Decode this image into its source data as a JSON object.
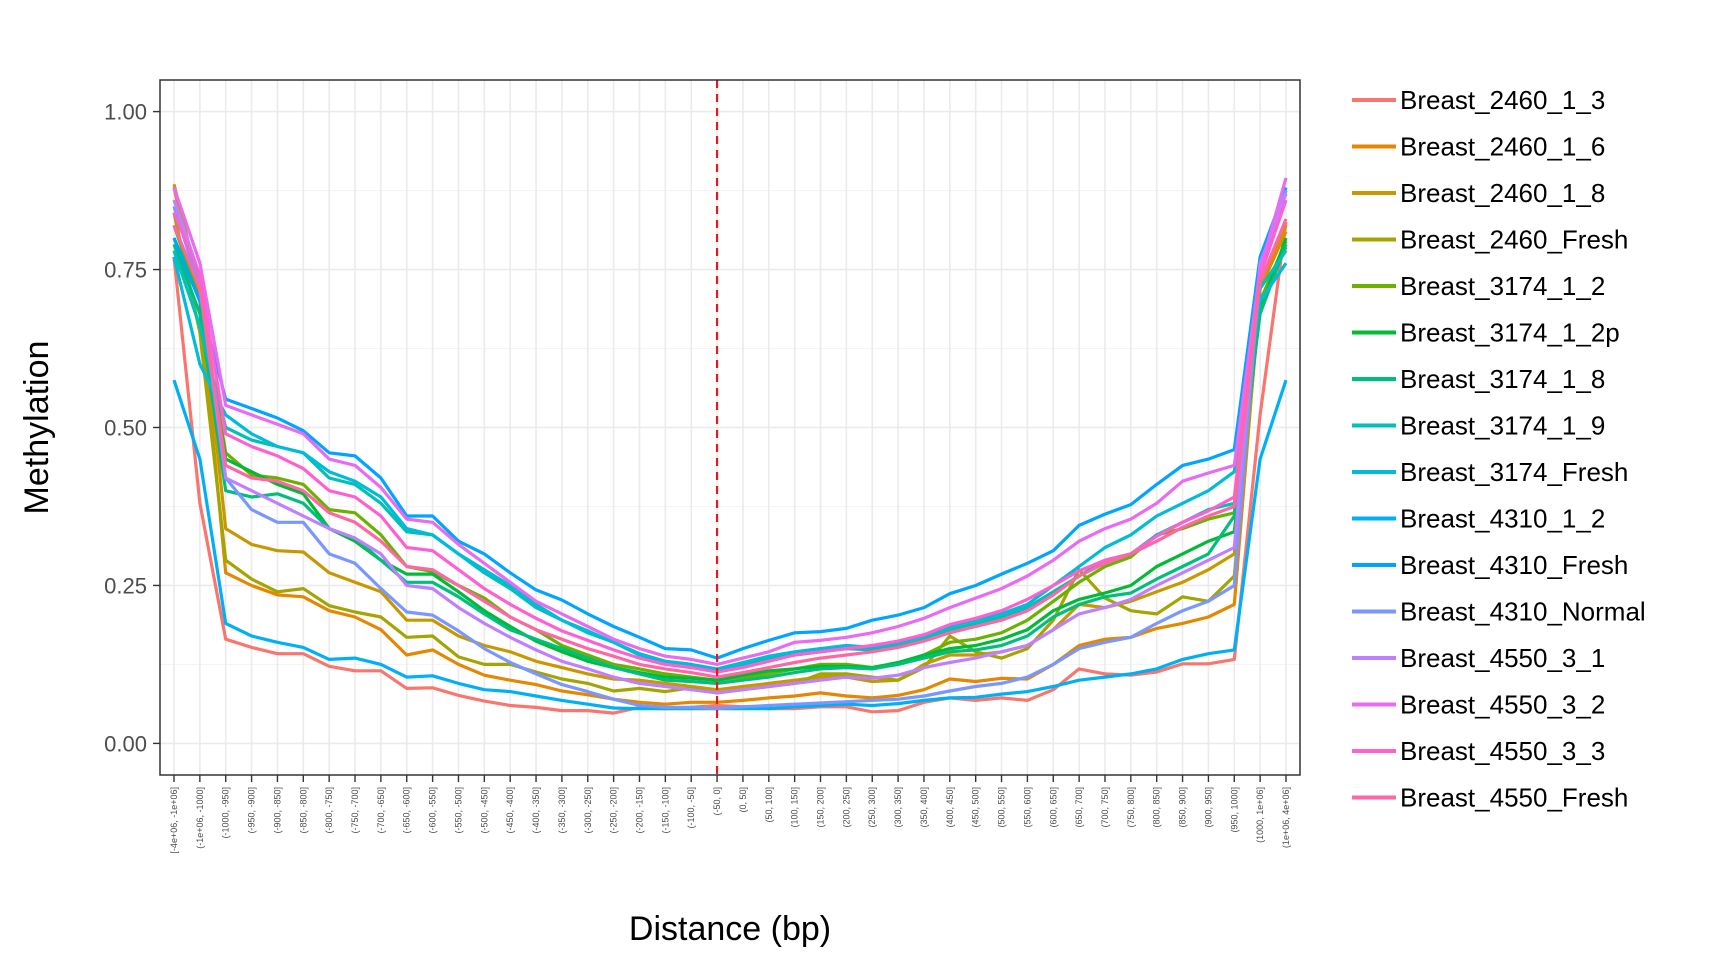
{
  "chart_data": {
    "type": "line",
    "title": "",
    "xlabel": "Distance (bp)",
    "ylabel": "Methylation",
    "ylim": [
      -0.05,
      1.05
    ],
    "yticks": [
      "0.00",
      "0.25",
      "0.50",
      "0.75",
      "1.00"
    ],
    "ytick_values": [
      0,
      0.25,
      0.5,
      0.75,
      1.0
    ],
    "grid": true,
    "legend_position": "right",
    "reference_line": {
      "category": "(-50, 0]",
      "color": "#e41a1c",
      "style": "dashed"
    },
    "categories": [
      "[-4e+06, -1e+06]",
      "(-1e+06, -1000]",
      "(-1000, -950]",
      "(-950, -900]",
      "(-900, -850]",
      "(-850, -800]",
      "(-800, -750]",
      "(-750, -700]",
      "(-700, -650]",
      "(-650, -600]",
      "(-600, -550]",
      "(-550, -500]",
      "(-500, -450]",
      "(-450, -400]",
      "(-400, -350]",
      "(-350, -300]",
      "(-300, -250]",
      "(-250, -200]",
      "(-200, -150]",
      "(-150, -100]",
      "(-100, -50]",
      "(-50, 0]",
      "(0, 50]",
      "(50, 100]",
      "(100, 150]",
      "(150, 200]",
      "(200, 250]",
      "(250, 300]",
      "(300, 350]",
      "(350, 400]",
      "(400, 450]",
      "(450, 500]",
      "(500, 550]",
      "(550, 600]",
      "(600, 650]",
      "(650, 700]",
      "(700, 750]",
      "(750, 800]",
      "(800, 850]",
      "(850, 900]",
      "(900, 950]",
      "(950, 1000]",
      "(1000, 1e+06]",
      "(1e+06, 4e+06]"
    ],
    "series": [
      {
        "name": "Breast_2460_1_3",
        "color": "#F8766D",
        "values": [
          0.77,
          0.38,
          0.165,
          0.152,
          0.142,
          0.142,
          0.122,
          0.115,
          0.115,
          0.087,
          0.088,
          0.076,
          0.067,
          0.06,
          0.057,
          0.052,
          0.052,
          0.048,
          0.057,
          0.055,
          0.057,
          0.06,
          0.058,
          0.055,
          0.055,
          0.058,
          0.058,
          0.05,
          0.052,
          0.065,
          0.072,
          0.068,
          0.072,
          0.068,
          0.085,
          0.118,
          0.11,
          0.108,
          0.113,
          0.126,
          0.126,
          0.133,
          0.52,
          0.825
        ]
      },
      {
        "name": "Breast_2460_1_6",
        "color": "#E58700",
        "values": [
          0.88,
          0.7,
          0.27,
          0.25,
          0.235,
          0.232,
          0.21,
          0.2,
          0.18,
          0.14,
          0.148,
          0.125,
          0.108,
          0.1,
          0.093,
          0.083,
          0.077,
          0.07,
          0.065,
          0.062,
          0.065,
          0.065,
          0.068,
          0.072,
          0.075,
          0.08,
          0.075,
          0.072,
          0.076,
          0.085,
          0.102,
          0.098,
          0.103,
          0.102,
          0.125,
          0.155,
          0.165,
          0.168,
          0.182,
          0.19,
          0.2,
          0.22,
          0.72,
          0.81
        ]
      },
      {
        "name": "Breast_2460_1_8",
        "color": "#C99800",
        "values": [
          0.885,
          0.72,
          0.34,
          0.315,
          0.305,
          0.303,
          0.27,
          0.255,
          0.24,
          0.195,
          0.195,
          0.17,
          0.155,
          0.145,
          0.13,
          0.12,
          0.11,
          0.102,
          0.1,
          0.095,
          0.09,
          0.085,
          0.09,
          0.095,
          0.1,
          0.105,
          0.105,
          0.098,
          0.1,
          0.125,
          0.14,
          0.14,
          0.145,
          0.155,
          0.18,
          0.22,
          0.215,
          0.225,
          0.24,
          0.255,
          0.275,
          0.3,
          0.73,
          0.82
        ]
      },
      {
        "name": "Breast_2460_Fresh",
        "color": "#A3A500",
        "values": [
          0.84,
          0.65,
          0.29,
          0.26,
          0.24,
          0.245,
          0.218,
          0.208,
          0.2,
          0.168,
          0.17,
          0.137,
          0.125,
          0.125,
          0.113,
          0.102,
          0.095,
          0.083,
          0.087,
          0.082,
          0.088,
          0.08,
          0.085,
          0.09,
          0.095,
          0.11,
          0.11,
          0.105,
          0.1,
          0.12,
          0.17,
          0.145,
          0.135,
          0.15,
          0.195,
          0.275,
          0.23,
          0.21,
          0.205,
          0.232,
          0.225,
          0.265,
          0.7,
          0.785
        ]
      },
      {
        "name": "Breast_3174_1_2",
        "color": "#6BB100",
        "values": [
          0.82,
          0.7,
          0.46,
          0.425,
          0.42,
          0.41,
          0.37,
          0.365,
          0.33,
          0.28,
          0.272,
          0.25,
          0.23,
          0.2,
          0.18,
          0.155,
          0.14,
          0.125,
          0.118,
          0.11,
          0.105,
          0.1,
          0.105,
          0.11,
          0.118,
          0.125,
          0.125,
          0.12,
          0.125,
          0.14,
          0.16,
          0.165,
          0.175,
          0.195,
          0.225,
          0.255,
          0.28,
          0.295,
          0.33,
          0.34,
          0.355,
          0.365,
          0.7,
          0.795
        ]
      },
      {
        "name": "Breast_3174_1_2p",
        "color": "#00BA38",
        "values": [
          0.8,
          0.7,
          0.45,
          0.43,
          0.41,
          0.395,
          0.34,
          0.32,
          0.29,
          0.268,
          0.268,
          0.24,
          0.21,
          0.185,
          0.162,
          0.145,
          0.13,
          0.12,
          0.112,
          0.105,
          0.103,
          0.1,
          0.108,
          0.115,
          0.118,
          0.122,
          0.122,
          0.12,
          0.128,
          0.14,
          0.15,
          0.155,
          0.165,
          0.18,
          0.21,
          0.228,
          0.238,
          0.25,
          0.28,
          0.3,
          0.32,
          0.335,
          0.685,
          0.8
        ]
      },
      {
        "name": "Breast_3174_1_8",
        "color": "#00BF7D",
        "values": [
          0.79,
          0.68,
          0.4,
          0.39,
          0.395,
          0.38,
          0.34,
          0.325,
          0.29,
          0.255,
          0.255,
          0.232,
          0.205,
          0.18,
          0.165,
          0.15,
          0.135,
          0.12,
          0.11,
          0.1,
          0.098,
          0.095,
          0.1,
          0.105,
          0.112,
          0.118,
          0.12,
          0.118,
          0.125,
          0.135,
          0.145,
          0.148,
          0.155,
          0.17,
          0.2,
          0.22,
          0.232,
          0.238,
          0.26,
          0.28,
          0.3,
          0.36,
          0.68,
          0.79
        ]
      },
      {
        "name": "Breast_3174_1_9",
        "color": "#00C0B8",
        "values": [
          0.78,
          0.66,
          0.5,
          0.48,
          0.47,
          0.46,
          0.42,
          0.41,
          0.38,
          0.335,
          0.33,
          0.3,
          0.27,
          0.245,
          0.215,
          0.195,
          0.175,
          0.16,
          0.14,
          0.13,
          0.125,
          0.115,
          0.125,
          0.135,
          0.14,
          0.145,
          0.15,
          0.148,
          0.155,
          0.165,
          0.18,
          0.19,
          0.2,
          0.215,
          0.24,
          0.265,
          0.29,
          0.3,
          0.33,
          0.35,
          0.37,
          0.38,
          0.72,
          0.78
        ]
      },
      {
        "name": "Breast_3174_Fresh",
        "color": "#00BCD8",
        "values": [
          0.77,
          0.6,
          0.52,
          0.49,
          0.47,
          0.46,
          0.43,
          0.415,
          0.39,
          0.34,
          0.33,
          0.3,
          0.275,
          0.25,
          0.22,
          0.195,
          0.178,
          0.16,
          0.142,
          0.13,
          0.125,
          0.118,
          0.128,
          0.138,
          0.145,
          0.15,
          0.155,
          0.152,
          0.16,
          0.17,
          0.185,
          0.195,
          0.205,
          0.22,
          0.25,
          0.28,
          0.31,
          0.33,
          0.36,
          0.38,
          0.4,
          0.43,
          0.7,
          0.76
        ]
      },
      {
        "name": "Breast_4310_1_2",
        "color": "#00B0F6",
        "values": [
          0.575,
          0.45,
          0.19,
          0.17,
          0.16,
          0.152,
          0.133,
          0.135,
          0.125,
          0.105,
          0.107,
          0.095,
          0.085,
          0.082,
          0.075,
          0.068,
          0.062,
          0.056,
          0.055,
          0.055,
          0.055,
          0.055,
          0.055,
          0.055,
          0.058,
          0.06,
          0.062,
          0.06,
          0.063,
          0.068,
          0.072,
          0.073,
          0.078,
          0.082,
          0.09,
          0.1,
          0.105,
          0.11,
          0.118,
          0.133,
          0.142,
          0.148,
          0.45,
          0.575
        ]
      },
      {
        "name": "Breast_4310_Fresh",
        "color": "#00A5FF",
        "values": [
          0.8,
          0.7,
          0.545,
          0.53,
          0.515,
          0.495,
          0.46,
          0.455,
          0.42,
          0.36,
          0.36,
          0.32,
          0.3,
          0.27,
          0.243,
          0.227,
          0.205,
          0.185,
          0.168,
          0.15,
          0.148,
          0.135,
          0.15,
          0.163,
          0.175,
          0.177,
          0.182,
          0.195,
          0.203,
          0.215,
          0.237,
          0.25,
          0.268,
          0.285,
          0.305,
          0.345,
          0.363,
          0.378,
          0.41,
          0.44,
          0.45,
          0.465,
          0.77,
          0.88
        ]
      },
      {
        "name": "Breast_4310_Normal",
        "color": "#7997FF",
        "values": [
          0.85,
          0.72,
          0.42,
          0.37,
          0.35,
          0.35,
          0.3,
          0.285,
          0.245,
          0.208,
          0.203,
          0.178,
          0.15,
          0.128,
          0.11,
          0.093,
          0.082,
          0.07,
          0.06,
          0.057,
          0.057,
          0.055,
          0.058,
          0.06,
          0.062,
          0.064,
          0.066,
          0.068,
          0.07,
          0.075,
          0.083,
          0.09,
          0.095,
          0.105,
          0.125,
          0.15,
          0.16,
          0.168,
          0.19,
          0.21,
          0.225,
          0.25,
          0.75,
          0.875
        ]
      },
      {
        "name": "Breast_4550_3_1",
        "color": "#BF80FF",
        "values": [
          0.86,
          0.74,
          0.42,
          0.4,
          0.38,
          0.36,
          0.34,
          0.325,
          0.3,
          0.25,
          0.245,
          0.215,
          0.19,
          0.168,
          0.148,
          0.13,
          0.118,
          0.105,
          0.095,
          0.09,
          0.085,
          0.08,
          0.085,
          0.09,
          0.095,
          0.1,
          0.105,
          0.103,
          0.108,
          0.12,
          0.128,
          0.135,
          0.145,
          0.155,
          0.18,
          0.205,
          0.215,
          0.228,
          0.25,
          0.27,
          0.29,
          0.31,
          0.76,
          0.87
        ]
      },
      {
        "name": "Breast_4550_3_2",
        "color": "#E76BF3",
        "values": [
          0.88,
          0.76,
          0.535,
          0.52,
          0.505,
          0.49,
          0.45,
          0.44,
          0.405,
          0.355,
          0.35,
          0.315,
          0.285,
          0.255,
          0.225,
          0.205,
          0.185,
          0.165,
          0.15,
          0.138,
          0.133,
          0.125,
          0.135,
          0.145,
          0.16,
          0.163,
          0.168,
          0.175,
          0.185,
          0.198,
          0.215,
          0.23,
          0.245,
          0.265,
          0.29,
          0.32,
          0.34,
          0.355,
          0.38,
          0.415,
          0.428,
          0.44,
          0.75,
          0.895
        ]
      },
      {
        "name": "Breast_4550_3_3",
        "color": "#FD61D1",
        "values": [
          0.84,
          0.74,
          0.49,
          0.47,
          0.455,
          0.435,
          0.4,
          0.39,
          0.36,
          0.31,
          0.305,
          0.275,
          0.245,
          0.22,
          0.198,
          0.178,
          0.163,
          0.148,
          0.135,
          0.125,
          0.12,
          0.113,
          0.12,
          0.13,
          0.14,
          0.145,
          0.15,
          0.155,
          0.162,
          0.172,
          0.188,
          0.198,
          0.21,
          0.228,
          0.25,
          0.273,
          0.29,
          0.3,
          0.328,
          0.35,
          0.368,
          0.39,
          0.74,
          0.86
        ]
      },
      {
        "name": "Breast_4550_Fresh",
        "color": "#FF67A4",
        "values": [
          0.82,
          0.72,
          0.44,
          0.42,
          0.415,
          0.4,
          0.365,
          0.35,
          0.32,
          0.28,
          0.275,
          0.25,
          0.225,
          0.2,
          0.18,
          0.165,
          0.15,
          0.138,
          0.125,
          0.118,
          0.112,
          0.105,
          0.112,
          0.12,
          0.128,
          0.135,
          0.14,
          0.145,
          0.152,
          0.162,
          0.175,
          0.185,
          0.195,
          0.21,
          0.235,
          0.265,
          0.285,
          0.3,
          0.32,
          0.342,
          0.36,
          0.375,
          0.73,
          0.83
        ]
      }
    ]
  }
}
